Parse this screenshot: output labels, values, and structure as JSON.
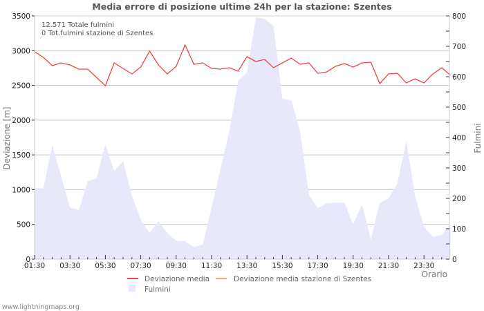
{
  "chart_data": {
    "type": "line",
    "title": "Media errore di posizione ultime 24h per la stazione: Szentes",
    "xlabel": "Orario",
    "ylabel": "Deviazione  [m]",
    "y2label": "Fulmini",
    "ylim": [
      0,
      3500
    ],
    "y2lim": [
      0,
      800
    ],
    "yticks": [
      0,
      500,
      1000,
      1500,
      2000,
      2500,
      3000,
      3500
    ],
    "y2ticks": [
      0,
      100,
      200,
      300,
      400,
      500,
      600,
      700,
      800
    ],
    "xtick_labels": [
      "01:30",
      "03:30",
      "05:30",
      "07:30",
      "09:30",
      "11:30",
      "13:30",
      "15:30",
      "17:30",
      "19:30",
      "21:30",
      "23:30"
    ],
    "grid": true,
    "legend_position": "bottom",
    "info_lines": [
      "12.571 Totale fulmini",
      "0 Tot.fulmini stazione di Szentes"
    ],
    "x": [
      "01:30",
      "02:00",
      "02:30",
      "03:00",
      "03:30",
      "04:00",
      "04:30",
      "05:00",
      "05:30",
      "06:00",
      "06:30",
      "07:00",
      "07:30",
      "08:00",
      "08:30",
      "09:00",
      "09:30",
      "10:00",
      "10:30",
      "11:00",
      "11:30",
      "12:00",
      "12:30",
      "13:00",
      "13:30",
      "14:00",
      "14:30",
      "15:00",
      "15:30",
      "16:00",
      "16:30",
      "17:00",
      "17:30",
      "18:00",
      "18:30",
      "19:00",
      "19:30",
      "20:00",
      "20:30",
      "21:00",
      "21:30",
      "22:00",
      "22:30",
      "23:00",
      "23:30",
      "00:00",
      "00:30",
      "01:00"
    ],
    "series": [
      {
        "name": "Deviazione media",
        "axis": "left",
        "color": "#ee3333",
        "values": [
          2983,
          2903,
          2784,
          2824,
          2794,
          2734,
          2734,
          2615,
          2496,
          2824,
          2744,
          2665,
          2764,
          2993,
          2794,
          2665,
          2774,
          3082,
          2804,
          2824,
          2744,
          2734,
          2754,
          2705,
          2913,
          2844,
          2874,
          2754,
          2824,
          2893,
          2804,
          2824,
          2674,
          2694,
          2774,
          2814,
          2764,
          2824,
          2834,
          2526,
          2665,
          2674,
          2536,
          2595,
          2536,
          2665,
          2754,
          2645
        ]
      },
      {
        "name": "Deviazione media stazione di Szentes",
        "axis": "left",
        "color": "#ff9944",
        "values": []
      },
      {
        "name": "Fulmini",
        "axis": "right",
        "type": "area",
        "color": "#e6e6fa",
        "values": [
          234,
          232,
          375,
          273,
          170,
          161,
          256,
          266,
          377,
          289,
          323,
          209,
          130,
          86,
          125,
          86,
          61,
          59,
          39,
          48,
          170,
          295,
          420,
          586,
          614,
          795,
          791,
          766,
          527,
          523,
          420,
          211,
          168,
          184,
          186,
          186,
          114,
          180,
          64,
          186,
          200,
          250,
          389,
          205,
          107,
          73,
          80,
          114
        ]
      }
    ]
  },
  "legend": {
    "items": [
      {
        "label": "Deviazione media",
        "color": "#ee4444"
      },
      {
        "label": "Deviazione media stazione di Szentes",
        "color": "#ffaa66"
      },
      {
        "label": "Fulmini",
        "color": "#e6e6fa"
      }
    ]
  },
  "footer": {
    "text": "www.lightningmaps.org"
  }
}
